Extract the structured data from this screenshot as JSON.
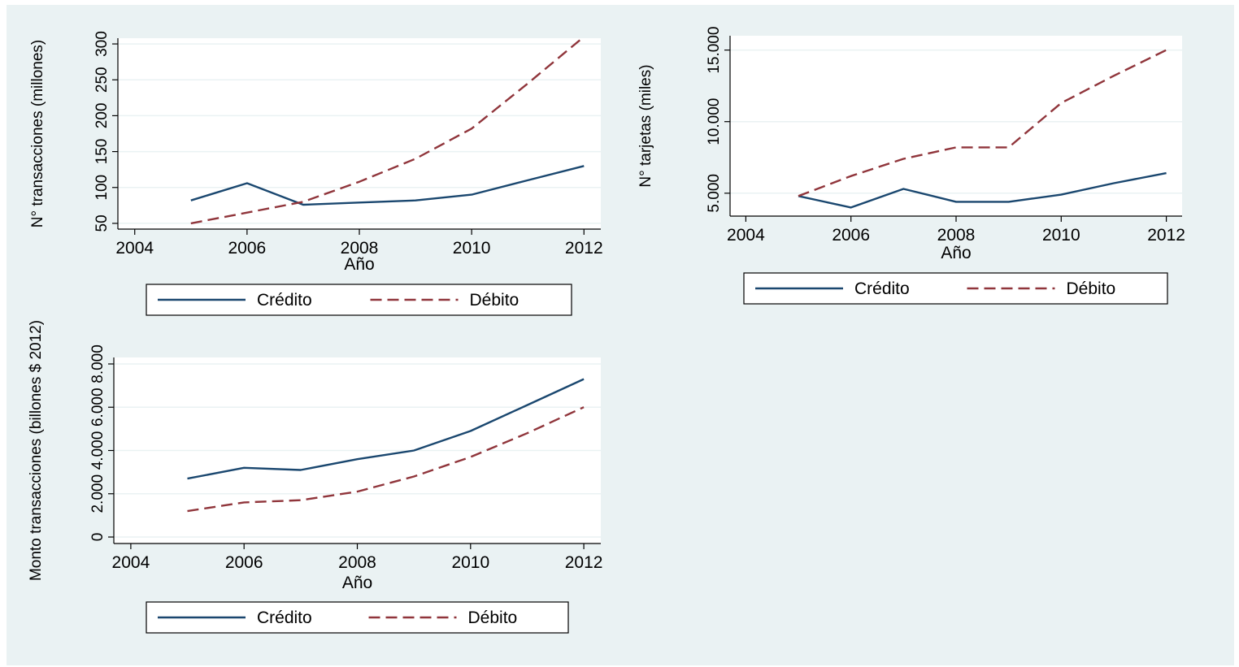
{
  "figure": {
    "background": "#eaf2f3",
    "plot_background": "#ffffff",
    "grid_color": "#eaf2f3"
  },
  "colors": {
    "credito": "#1a476f",
    "debito": "#90353b"
  },
  "chart_data": [
    {
      "id": "transacciones",
      "type": "line",
      "title": "",
      "xlabel": "Año",
      "ylabel": "N° transacciones (millones)",
      "x": [
        2005,
        2006,
        2007,
        2008,
        2009,
        2010,
        2011,
        2012
      ],
      "xlim": [
        2003.7,
        2012.3
      ],
      "xticks": [
        "2004",
        "2006",
        "2008",
        "2010",
        "2012"
      ],
      "ylim": [
        42,
        308
      ],
      "yticks": [
        "50",
        "100",
        "150",
        "200",
        "250",
        "300"
      ],
      "ytick_values": [
        50,
        100,
        150,
        200,
        250,
        300
      ],
      "grid": true,
      "series": [
        {
          "name": "Crédito",
          "style": "solid",
          "values": [
            82,
            106,
            76,
            79,
            82,
            90,
            110,
            130
          ]
        },
        {
          "name": "Débito",
          "style": "dashed",
          "values": [
            50,
            65,
            80,
            108,
            140,
            182,
            245,
            310
          ]
        }
      ],
      "legend": "bottom"
    },
    {
      "id": "tarjetas",
      "type": "line",
      "title": "",
      "xlabel": "Año",
      "ylabel": "N° tarjetas (miles)",
      "x": [
        2005,
        2006,
        2007,
        2008,
        2009,
        2010,
        2011,
        2012
      ],
      "xlim": [
        2003.7,
        2012.3
      ],
      "xticks": [
        "2004",
        "2006",
        "2008",
        "2010",
        "2012"
      ],
      "ylim": [
        3400,
        16000
      ],
      "yticks": [
        "5.000",
        "10.000",
        "15.000"
      ],
      "ytick_values": [
        5000,
        10000,
        15000
      ],
      "grid": true,
      "series": [
        {
          "name": "Crédito",
          "style": "solid",
          "values": [
            4800,
            4000,
            5300,
            4400,
            4400,
            4900,
            5700,
            6400
          ]
        },
        {
          "name": "Débito",
          "style": "dashed",
          "values": [
            4800,
            6200,
            7400,
            8200,
            8200,
            11300,
            13200,
            15000
          ]
        }
      ],
      "legend": "bottom"
    },
    {
      "id": "monto",
      "type": "line",
      "title": "",
      "xlabel": "Año",
      "ylabel": "Monto transacciones (billones $ 2012)",
      "x": [
        2005,
        2006,
        2007,
        2008,
        2009,
        2010,
        2011,
        2012
      ],
      "xlim": [
        2003.7,
        2012.3
      ],
      "xticks": [
        "2004",
        "2006",
        "2008",
        "2010",
        "2012"
      ],
      "ylim": [
        -300,
        8300
      ],
      "yticks": [
        "0",
        "2.000",
        "4.000",
        "6.000",
        "8.000"
      ],
      "ytick_values": [
        0,
        2000,
        4000,
        6000,
        8000
      ],
      "grid": true,
      "series": [
        {
          "name": "Crédito",
          "style": "solid",
          "values": [
            2700,
            3200,
            3100,
            3600,
            4000,
            4900,
            6100,
            7300
          ]
        },
        {
          "name": "Débito",
          "style": "dashed",
          "values": [
            1200,
            1600,
            1700,
            2100,
            2800,
            3700,
            4800,
            6000
          ]
        }
      ],
      "legend": "bottom"
    }
  ]
}
